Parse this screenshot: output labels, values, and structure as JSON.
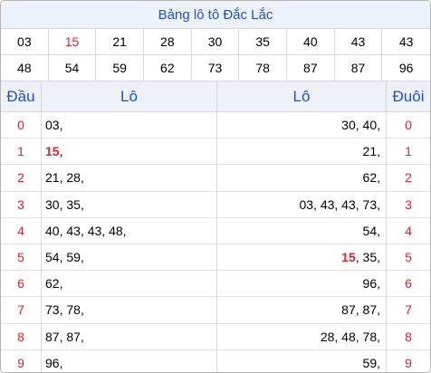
{
  "title": "Bảng lô tô Đắc Lắc",
  "numbers": [
    {
      "v": "03",
      "hl": false
    },
    {
      "v": "15",
      "hl": true
    },
    {
      "v": "21",
      "hl": false
    },
    {
      "v": "28",
      "hl": false
    },
    {
      "v": "30",
      "hl": false
    },
    {
      "v": "35",
      "hl": false
    },
    {
      "v": "40",
      "hl": false
    },
    {
      "v": "43",
      "hl": false
    },
    {
      "v": "43",
      "hl": false
    },
    {
      "v": "48",
      "hl": false
    },
    {
      "v": "54",
      "hl": false
    },
    {
      "v": "59",
      "hl": false
    },
    {
      "v": "62",
      "hl": false
    },
    {
      "v": "73",
      "hl": false
    },
    {
      "v": "78",
      "hl": false
    },
    {
      "v": "87",
      "hl": false
    },
    {
      "v": "87",
      "hl": false
    },
    {
      "v": "96",
      "hl": false
    }
  ],
  "headers": {
    "dau": "Đầu",
    "lo_left": "Lô",
    "lo_right": "Lô",
    "duoi": "Đuôi"
  },
  "rows": [
    {
      "dau": "0",
      "left": [
        {
          "t": "03"
        }
      ],
      "right": [
        {
          "t": "30"
        },
        {
          "t": "40"
        }
      ],
      "duoi": "0"
    },
    {
      "dau": "1",
      "left": [
        {
          "t": "15",
          "hl": true
        }
      ],
      "right": [
        {
          "t": "21"
        }
      ],
      "duoi": "1"
    },
    {
      "dau": "2",
      "left": [
        {
          "t": "21"
        },
        {
          "t": "28"
        }
      ],
      "right": [
        {
          "t": "62"
        }
      ],
      "duoi": "2"
    },
    {
      "dau": "3",
      "left": [
        {
          "t": "30"
        },
        {
          "t": "35"
        }
      ],
      "right": [
        {
          "t": "03"
        },
        {
          "t": "43"
        },
        {
          "t": "43"
        },
        {
          "t": "73"
        }
      ],
      "duoi": "3"
    },
    {
      "dau": "4",
      "left": [
        {
          "t": "40"
        },
        {
          "t": "43"
        },
        {
          "t": "43"
        },
        {
          "t": "48"
        }
      ],
      "right": [
        {
          "t": "54"
        }
      ],
      "duoi": "4"
    },
    {
      "dau": "5",
      "left": [
        {
          "t": "54"
        },
        {
          "t": "59"
        }
      ],
      "right": [
        {
          "t": "15",
          "hl": true
        },
        {
          "t": "35"
        }
      ],
      "duoi": "5"
    },
    {
      "dau": "6",
      "left": [
        {
          "t": "62"
        }
      ],
      "right": [
        {
          "t": "96"
        }
      ],
      "duoi": "6"
    },
    {
      "dau": "7",
      "left": [
        {
          "t": "73"
        },
        {
          "t": "78"
        }
      ],
      "right": [
        {
          "t": "87"
        },
        {
          "t": "87"
        }
      ],
      "duoi": "7"
    },
    {
      "dau": "8",
      "left": [
        {
          "t": "87"
        },
        {
          "t": "87"
        }
      ],
      "right": [
        {
          "t": "28"
        },
        {
          "t": "48"
        },
        {
          "t": "78"
        }
      ],
      "duoi": "8"
    },
    {
      "dau": "9",
      "left": [
        {
          "t": "96"
        }
      ],
      "right": [
        {
          "t": "59"
        }
      ],
      "duoi": "9"
    }
  ]
}
